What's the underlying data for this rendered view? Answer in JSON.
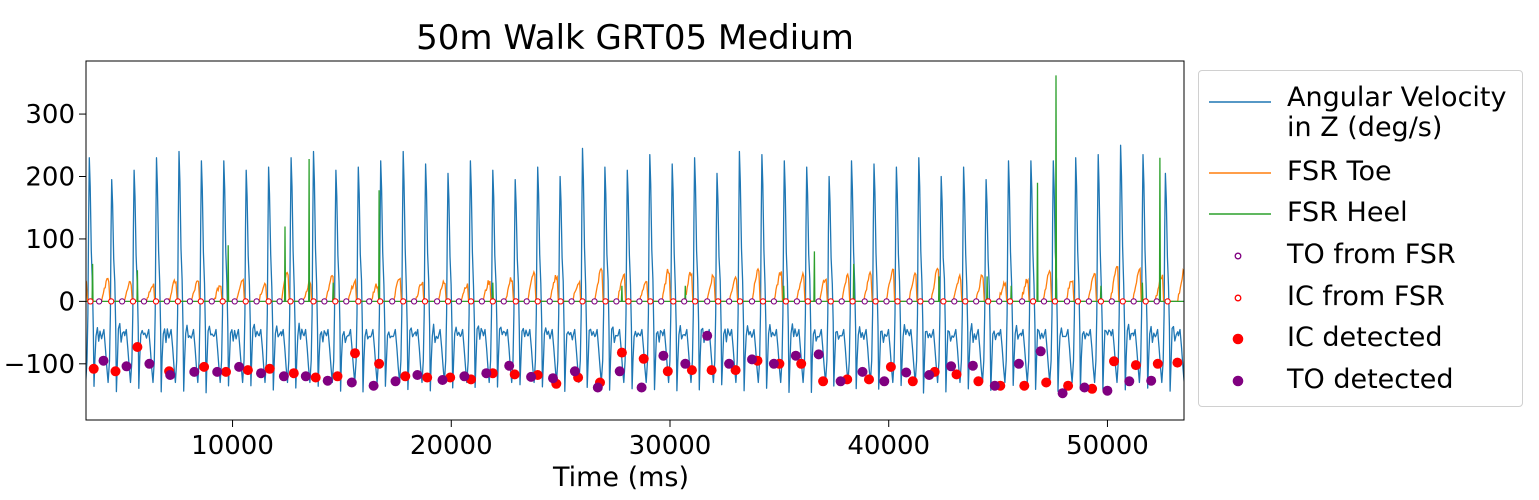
{
  "chart_data": {
    "type": "line",
    "title": "50m Walk GRT05 Medium",
    "xlabel": "Time (ms)",
    "ylabel": "",
    "xlim": [
      3300,
      53500
    ],
    "ylim": [
      -190,
      385
    ],
    "xticks": [
      10000,
      20000,
      30000,
      40000,
      50000
    ],
    "yticks": [
      -100,
      0,
      100,
      200,
      300
    ],
    "ytick_labels": [
      "−100",
      "0",
      "100",
      "200",
      "300"
    ],
    "grid": false,
    "legend_position": "outside-right",
    "series": [
      {
        "name": "Angular Velocity\n in Z (deg/s)",
        "kind": "line",
        "color": "#1f77b4",
        "step_period_ms": 1025,
        "first_peak_ms": 3450,
        "peak_values": [
          230,
          195,
          210,
          230,
          240,
          225,
          225,
          210,
          215,
          230,
          240,
          210,
          215,
          225,
          240,
          220,
          205,
          225,
          210,
          195,
          215,
          200,
          245,
          215,
          210,
          235,
          220,
          230,
          205,
          240,
          235,
          225,
          215,
          200,
          225,
          220,
          215,
          230,
          200,
          215,
          195,
          225,
          225,
          225,
          230,
          235,
          250,
          235,
          205,
          210
        ]
      },
      {
        "name": "FSR Toe",
        "kind": "line",
        "color": "#ff7f0e",
        "step_period_ms": 1025,
        "peak_values": [
          35,
          28,
          25,
          32,
          30,
          25,
          35,
          28,
          45,
          30,
          38,
          30,
          25,
          35,
          30,
          30,
          25,
          30,
          35,
          45,
          40,
          30,
          50,
          40,
          32,
          48,
          45,
          40,
          38,
          50,
          45,
          42,
          35,
          40,
          45,
          48,
          42,
          50,
          38,
          40,
          30,
          32,
          45,
          35,
          42,
          55,
          50,
          40,
          48,
          42
        ]
      },
      {
        "name": "FSR Heel",
        "kind": "line",
        "color": "#2ca02c",
        "events": [
          {
            "x": 3600,
            "y": 60
          },
          {
            "x": 5650,
            "y": 50
          },
          {
            "x": 9800,
            "y": 90
          },
          {
            "x": 12400,
            "y": 120
          },
          {
            "x": 13500,
            "y": 228
          },
          {
            "x": 14600,
            "y": 30
          },
          {
            "x": 16700,
            "y": 178
          },
          {
            "x": 21900,
            "y": 30
          },
          {
            "x": 27800,
            "y": 25
          },
          {
            "x": 30700,
            "y": 25
          },
          {
            "x": 35200,
            "y": 25
          },
          {
            "x": 36600,
            "y": 80
          },
          {
            "x": 38400,
            "y": 60
          },
          {
            "x": 42300,
            "y": 40
          },
          {
            "x": 44500,
            "y": 40
          },
          {
            "x": 45600,
            "y": 25
          },
          {
            "x": 46800,
            "y": 190
          },
          {
            "x": 47650,
            "y": 362
          },
          {
            "x": 49700,
            "y": 25
          },
          {
            "x": 51600,
            "y": 30
          },
          {
            "x": 52400,
            "y": 230
          }
        ]
      },
      {
        "name": "TO from FSR",
        "kind": "scatter",
        "marker": "hollow-circle",
        "color": "#800080",
        "x": [
          3900,
          4950,
          5950,
          7000,
          8050,
          9050,
          10100,
          11100,
          12150,
          13150,
          14200,
          15200,
          16250,
          17300,
          18300,
          19350,
          20350,
          21400,
          22400,
          23450,
          24500,
          25500,
          26550,
          27550,
          28600,
          29600,
          30650,
          31700,
          32700,
          33750,
          34750,
          35800,
          36800,
          37850,
          38900,
          39900,
          40950,
          41950,
          43000,
          44000,
          45050,
          46100,
          47100,
          48150,
          49150,
          50200,
          51200,
          52250
        ],
        "y": [
          0,
          0,
          0,
          0,
          0,
          0,
          0,
          0,
          0,
          0,
          0,
          0,
          0,
          0,
          0,
          0,
          0,
          0,
          0,
          0,
          0,
          0,
          0,
          0,
          0,
          0,
          0,
          0,
          0,
          0,
          0,
          0,
          0,
          0,
          0,
          0,
          0,
          0,
          0,
          0,
          0,
          0,
          0,
          0,
          0,
          0,
          0,
          0
        ]
      },
      {
        "name": "IC from FSR",
        "kind": "scatter",
        "marker": "hollow-circle",
        "color": "#ff0000",
        "x": [
          3500,
          4450,
          5450,
          6500,
          7500,
          8550,
          9550,
          10600,
          11650,
          12650,
          13700,
          14700,
          15750,
          16750,
          17800,
          18800,
          19850,
          20900,
          21900,
          22950,
          23950,
          25000,
          26000,
          27050,
          28100,
          29100,
          30150,
          31150,
          32200,
          33200,
          34250,
          35300,
          36300,
          37350,
          38350,
          39400,
          40400,
          41450,
          42500,
          43500,
          44550,
          45550,
          46600,
          47600,
          48650,
          49700,
          50700,
          51750,
          52750
        ],
        "y": [
          0,
          0,
          0,
          0,
          0,
          0,
          0,
          0,
          0,
          0,
          0,
          0,
          0,
          0,
          0,
          0,
          0,
          0,
          0,
          0,
          0,
          0,
          0,
          0,
          0,
          0,
          0,
          0,
          0,
          0,
          0,
          0,
          0,
          0,
          0,
          0,
          0,
          0,
          0,
          0,
          0,
          0,
          0,
          0,
          0,
          0,
          0,
          0,
          0
        ]
      },
      {
        "name": "IC detected",
        "kind": "scatter",
        "marker": "filled-circle",
        "color": "#ff0000",
        "x": [
          3650,
          4650,
          5650,
          7100,
          8700,
          9700,
          10700,
          11700,
          12800,
          13800,
          14800,
          15600,
          16700,
          17900,
          18900,
          19950,
          20900,
          21900,
          22900,
          23950,
          24800,
          25800,
          26800,
          27800,
          28800,
          29900,
          31000,
          31900,
          33000,
          34000,
          35000,
          36000,
          37000,
          38100,
          39100,
          40100,
          41100,
          42100,
          43100,
          44100,
          45100,
          46200,
          47200,
          48200,
          49300,
          50300,
          51300,
          52300,
          53200
        ],
        "y": [
          -108,
          -112,
          -73,
          -112,
          -105,
          -113,
          -110,
          -108,
          -115,
          -122,
          -120,
          -83,
          -100,
          -120,
          -122,
          -122,
          -125,
          -115,
          -117,
          -118,
          -132,
          -122,
          -130,
          -82,
          -92,
          -112,
          -110,
          -110,
          -110,
          -95,
          -100,
          -100,
          -128,
          -125,
          -125,
          -105,
          -128,
          -113,
          -117,
          -128,
          -135,
          -135,
          -130,
          -135,
          -140,
          -96,
          -102,
          -100,
          -98
        ]
      },
      {
        "name": "TO detected",
        "kind": "scatter",
        "marker": "filled-circle",
        "color": "#800080",
        "x": [
          4100,
          5150,
          6200,
          7150,
          8250,
          9300,
          10300,
          11300,
          12350,
          13350,
          14350,
          15450,
          16450,
          17450,
          18450,
          19600,
          20600,
          21600,
          22650,
          23650,
          24650,
          25650,
          26700,
          27700,
          28700,
          29700,
          30700,
          31700,
          32700,
          33750,
          34750,
          35750,
          36800,
          37800,
          38800,
          39800,
          40800,
          41850,
          42850,
          43850,
          44850,
          45950,
          46950,
          47950,
          48950,
          50000,
          51000,
          52000
        ],
        "y": [
          -95,
          -104,
          -100,
          -118,
          -113,
          -113,
          -105,
          -115,
          -120,
          -120,
          -127,
          -130,
          -135,
          -128,
          -118,
          -126,
          -120,
          -115,
          -103,
          -121,
          -123,
          -112,
          -138,
          -112,
          -138,
          -87,
          -100,
          -55,
          -100,
          -93,
          -100,
          -87,
          -85,
          -128,
          -113,
          -128,
          -114,
          -118,
          -104,
          -103,
          -135,
          -100,
          -80,
          -147,
          -138,
          -143,
          -128,
          -127
        ]
      }
    ]
  }
}
